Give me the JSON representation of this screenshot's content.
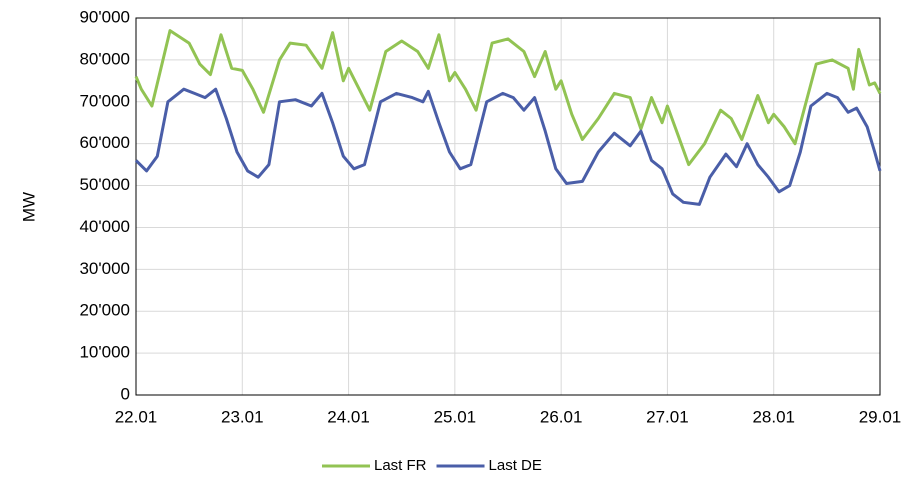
{
  "chart_data": {
    "type": "line",
    "y_label": "MW",
    "xlim": [
      0,
      7
    ],
    "xticks": [
      {
        "value": 0,
        "label": "22.01"
      },
      {
        "value": 1,
        "label": "23.01"
      },
      {
        "value": 2,
        "label": "24.01"
      },
      {
        "value": 3,
        "label": "25.01"
      },
      {
        "value": 4,
        "label": "26.01"
      },
      {
        "value": 5,
        "label": "27.01"
      },
      {
        "value": 6,
        "label": "28.01"
      },
      {
        "value": 7,
        "label": "29.01"
      }
    ],
    "ylim": [
      0,
      90000
    ],
    "yticks": [
      0,
      {
        "value": 10000,
        "label": "10'000"
      },
      {
        "value": 20000,
        "label": "20'000"
      },
      {
        "value": 30000,
        "label": "30'000"
      },
      {
        "value": 40000,
        "label": "40'000"
      },
      {
        "value": 50000,
        "label": "50'000"
      },
      {
        "value": 60000,
        "label": "60'000"
      },
      {
        "value": 70000,
        "label": "70'000"
      },
      {
        "value": 80000,
        "label": "80'000"
      },
      {
        "value": 90000,
        "label": "90'000"
      }
    ],
    "grid": true,
    "legend": "bottom",
    "series": [
      {
        "name": "Last FR",
        "color": "#92c353",
        "x": [
          0,
          0.05,
          0.15,
          0.32,
          0.5,
          0.6,
          0.7,
          0.8,
          0.9,
          1.0,
          1.1,
          1.2,
          1.35,
          1.45,
          1.6,
          1.75,
          1.85,
          1.95,
          2.0,
          2.1,
          2.2,
          2.35,
          2.5,
          2.65,
          2.75,
          2.85,
          2.95,
          3.0,
          3.1,
          3.2,
          3.35,
          3.5,
          3.65,
          3.75,
          3.85,
          3.95,
          4.0,
          4.1,
          4.2,
          4.35,
          4.5,
          4.65,
          4.75,
          4.85,
          4.95,
          5.0,
          5.1,
          5.2,
          5.35,
          5.5,
          5.6,
          5.7,
          5.85,
          5.95,
          6.0,
          6.1,
          6.2,
          6.4,
          6.55,
          6.7,
          6.75,
          6.8,
          6.9,
          6.95,
          7.0
        ],
        "values": [
          76000,
          73000,
          69000,
          87000,
          84000,
          79000,
          76500,
          86000,
          78000,
          77500,
          73000,
          67500,
          80000,
          84000,
          83500,
          78000,
          86500,
          75000,
          78000,
          73000,
          68000,
          82000,
          84500,
          82000,
          78000,
          86000,
          75000,
          77000,
          73000,
          68000,
          84000,
          85000,
          82000,
          76000,
          82000,
          73000,
          75000,
          67000,
          61000,
          66000,
          72000,
          71000,
          63500,
          71000,
          65000,
          69000,
          62000,
          55000,
          60000,
          68000,
          66000,
          61000,
          71500,
          65000,
          67000,
          64000,
          60000,
          79000,
          80000,
          78000,
          73000,
          82500,
          74000,
          74500,
          72000
        ]
      },
      {
        "name": "Last DE",
        "color": "#4a5ea8",
        "x": [
          0,
          0.1,
          0.2,
          0.3,
          0.4,
          0.45,
          0.55,
          0.65,
          0.75,
          0.85,
          0.95,
          1.05,
          1.15,
          1.25,
          1.35,
          1.5,
          1.65,
          1.75,
          1.85,
          1.95,
          2.05,
          2.15,
          2.3,
          2.45,
          2.6,
          2.7,
          2.75,
          2.85,
          2.95,
          3.05,
          3.15,
          3.3,
          3.45,
          3.55,
          3.65,
          3.75,
          3.85,
          3.95,
          4.05,
          4.2,
          4.35,
          4.5,
          4.65,
          4.75,
          4.85,
          4.95,
          5.05,
          5.15,
          5.3,
          5.4,
          5.55,
          5.65,
          5.75,
          5.85,
          5.95,
          6.05,
          6.15,
          6.25,
          6.35,
          6.5,
          6.6,
          6.7,
          6.78,
          6.88,
          6.95,
          7.0
        ],
        "values": [
          56000,
          53500,
          57000,
          70000,
          72000,
          73000,
          72000,
          71000,
          73000,
          66000,
          58000,
          53500,
          52000,
          55000,
          70000,
          70500,
          69000,
          72000,
          65000,
          57000,
          54000,
          55000,
          70000,
          72000,
          71000,
          70000,
          72500,
          65000,
          58000,
          54000,
          55000,
          70000,
          72000,
          71000,
          68000,
          71000,
          63000,
          54000,
          50500,
          51000,
          58000,
          62500,
          59500,
          63000,
          56000,
          54000,
          48000,
          46000,
          45500,
          52000,
          57500,
          54500,
          60000,
          55000,
          52000,
          48500,
          50000,
          58000,
          69000,
          72000,
          71000,
          67500,
          68500,
          64000,
          58000,
          53500
        ]
      }
    ]
  }
}
